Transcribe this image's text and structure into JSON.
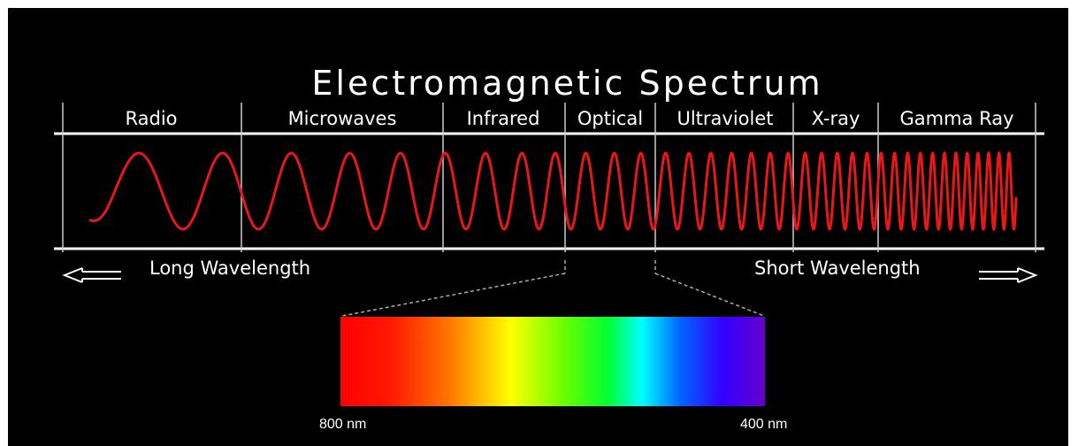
{
  "title": "Electromagnetic Spectrum",
  "bands": [
    {
      "label": "Radio"
    },
    {
      "label": "Microwaves"
    },
    {
      "label": "Infrared"
    },
    {
      "label": "Optical"
    },
    {
      "label": "Ultraviolet"
    },
    {
      "label": "X-ray"
    },
    {
      "label": "Gamma Ray"
    }
  ],
  "long_wavelength_label": "Long Wavelength",
  "short_wavelength_label": "Short Wavelength",
  "visible_range": {
    "start_label": "800 nm",
    "end_label": "400 nm",
    "gradient_colors": [
      "#ff0000",
      "#ff1a00",
      "#ff7a00",
      "#ffff00",
      "#66ff00",
      "#00ff33",
      "#00ffff",
      "#0066ff",
      "#3300ff",
      "#6600cc"
    ]
  },
  "colors": {
    "background": "#000000",
    "lines": "#ffffff",
    "wave": "#ff1a1a"
  }
}
